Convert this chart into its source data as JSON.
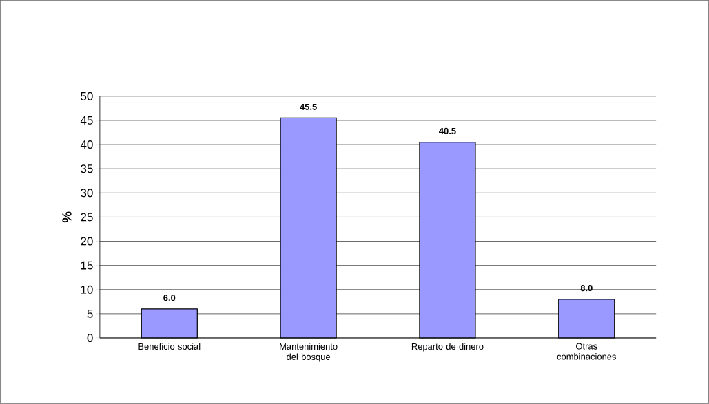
{
  "chart_data": {
    "type": "bar",
    "ylabel": "%",
    "categories": [
      "Beneficio social",
      "Mantenimiento del bosque",
      "Reparto de dinero",
      "Otras combinaciones"
    ],
    "values": [
      6.0,
      45.5,
      40.5,
      8.0
    ],
    "value_labels": [
      "6.0",
      "45.5",
      "40.5",
      "8.0"
    ],
    "color": "#9999ff",
    "ylim": [
      0,
      50
    ],
    "yticks": [
      0,
      5,
      10,
      15,
      20,
      25,
      30,
      35,
      40,
      45,
      50
    ],
    "grid": "y"
  }
}
